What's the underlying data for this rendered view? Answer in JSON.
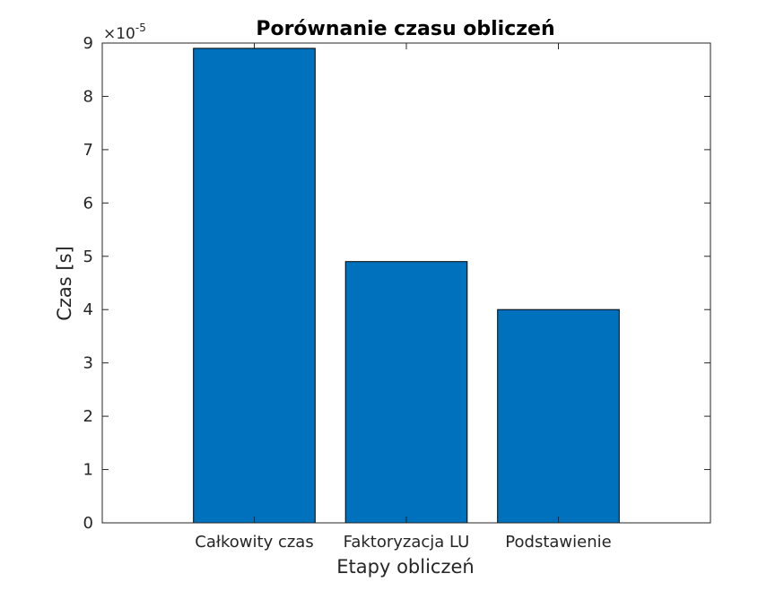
{
  "chart_data": {
    "type": "bar",
    "title": "Porównanie czasu obliczeń",
    "xlabel": "Etapy obliczeń",
    "ylabel": "Czas [s]",
    "categories": [
      "Całkowity czas",
      "Faktoryzacja LU",
      "Podstawienie"
    ],
    "values": [
      8.9e-05,
      4.9e-05,
      4e-05
    ],
    "ylim": [
      0,
      9e-05
    ],
    "yticks": [
      "0",
      "1",
      "2",
      "3",
      "4",
      "5",
      "6",
      "7",
      "8",
      "9"
    ],
    "y_exponent_base": "×10",
    "y_exponent": "-5",
    "bar_color": "#0072BD",
    "grid": false,
    "legend": "none"
  }
}
